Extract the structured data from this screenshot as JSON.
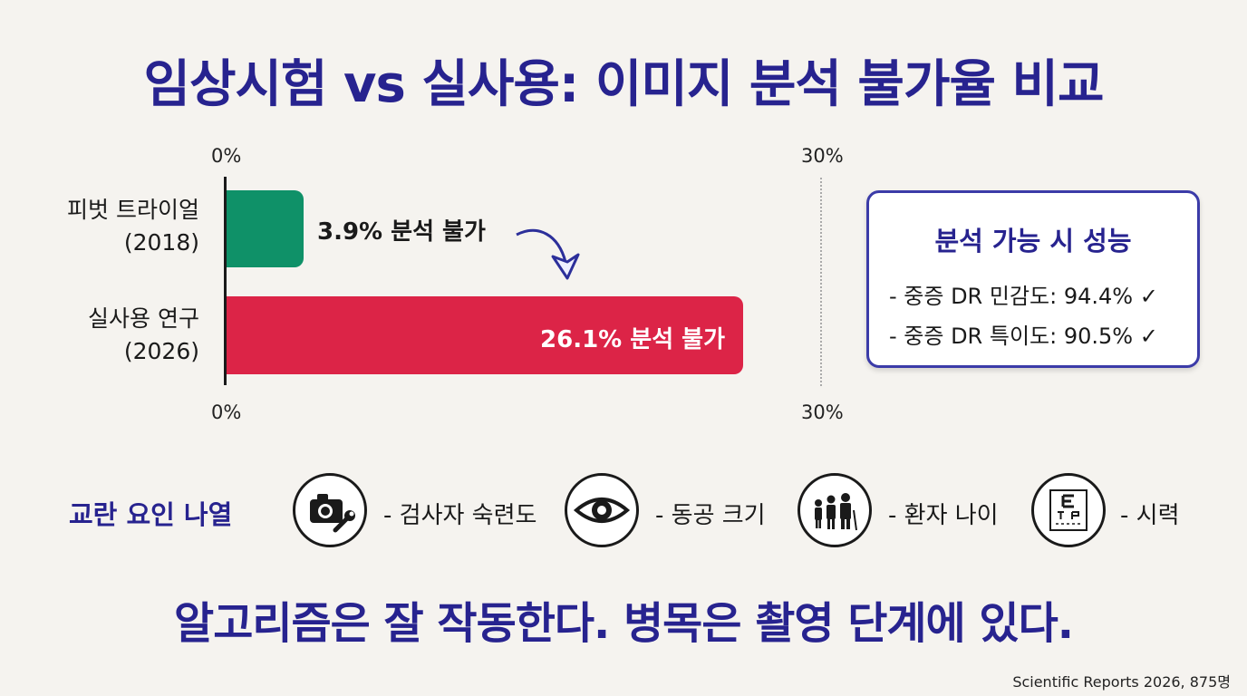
{
  "title": "임상시험 vs 실사용: 이미지 분석 불가율 비교",
  "chart_data": {
    "type": "bar",
    "orientation": "horizontal",
    "categories": [
      "피벗 트라이얼 (2018)",
      "실사용 연구 (2026)"
    ],
    "category_lines": [
      [
        "피벗 트라이얼",
        "(2018)"
      ],
      [
        "실사용 연구",
        "(2026)"
      ]
    ],
    "values": [
      3.9,
      26.1
    ],
    "unit": "%",
    "data_labels": [
      "3.9% 분석 불가",
      "26.1% 분석 불가"
    ],
    "colors": [
      "#0f9168",
      "#dc2447"
    ],
    "xlim": [
      0,
      30
    ],
    "tick_labels": [
      "0%",
      "30%"
    ],
    "grid": false
  },
  "performance_box": {
    "title": "분석 가능 시 성능",
    "items": [
      "- 중증 DR 민감도: 94.4% ✓",
      "- 중증 DR 특이도: 90.5% ✓"
    ]
  },
  "factors": {
    "heading": "교란 요인 나열",
    "items": [
      {
        "icon": "camera-wrench-icon",
        "label": "- 검사자 숙련도"
      },
      {
        "icon": "eye-icon",
        "label": "- 동공 크기"
      },
      {
        "icon": "family-icon",
        "label": "- 환자 나이"
      },
      {
        "icon": "eye-chart-icon",
        "label": "- 시력"
      }
    ]
  },
  "conclusion": "알고리즘은 잘 작동한다. 병목은 촬영 단계에 있다.",
  "source": "Scientific Reports 2026, 875명"
}
